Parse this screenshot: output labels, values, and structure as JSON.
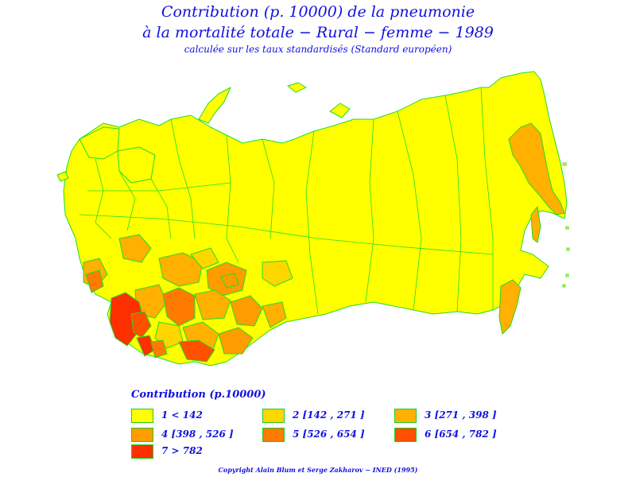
{
  "header": {
    "title_line1": "Contribution (p. 10000) de la pneumonie",
    "title_line2": "à la mortalité totale − Rural − femme − 1989",
    "subtitle": "calculée sur les taux standardisés (Standard européen)"
  },
  "legend": {
    "title": "Contribution (p.10000)",
    "items": [
      {
        "label": "1  <  142",
        "color": "#ffff00"
      },
      {
        "label": "2 [142  ,  271 ]",
        "color": "#ffd700"
      },
      {
        "label": "3 [271  ,  398 ]",
        "color": "#ffb000"
      },
      {
        "label": "4 [398  ,  526 ]",
        "color": "#ff9c00"
      },
      {
        "label": "5 [526  ,  654 ]",
        "color": "#ff7a00"
      },
      {
        "label": "6 [654  ,  782 ]",
        "color": "#ff5000"
      },
      {
        "label": "7  >  782",
        "color": "#ff3000"
      }
    ]
  },
  "colors": {
    "title_text": "#1010e0",
    "region_border": "#22dd22"
  },
  "footer": {
    "copyright": "Copyright Alain Blum et Serge Zakharov − INED (1995)"
  }
}
